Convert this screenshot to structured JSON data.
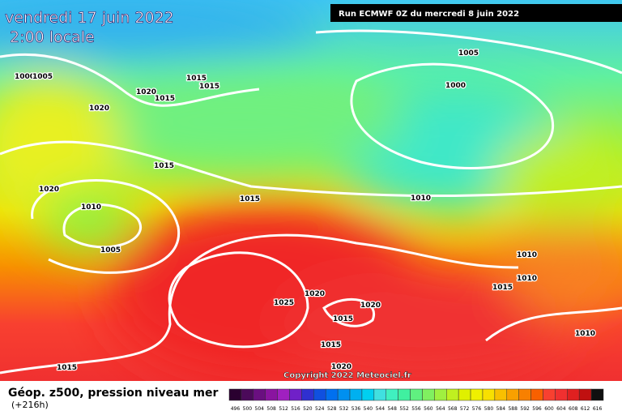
{
  "header": {
    "date": "vendredi 17 juin 2022",
    "time": "2:00 locale",
    "run": "Run ECMWF 0Z du mercredi 8 juin 2022"
  },
  "isobars": [
    "1000",
    "1005",
    "1015",
    "1015",
    "1020",
    "1015",
    "1020",
    "1005",
    "1000",
    "1015",
    "1020",
    "1015",
    "1010",
    "1010",
    "1005",
    "1010",
    "1010",
    "1015",
    "1020",
    "1025",
    "1020",
    "1015",
    "1015",
    "1020",
    "1015",
    "1010"
  ],
  "copyright": "Copyright 2022 Meteociel.fr",
  "footer": {
    "title": "Géop. z500, pression niveau mer",
    "lead": "(+216h)"
  },
  "legend": {
    "labels": [
      496,
      500,
      504,
      508,
      512,
      516,
      520,
      524,
      528,
      532,
      536,
      540,
      544,
      548,
      552,
      556,
      560,
      564,
      568,
      572,
      576,
      580,
      584,
      588,
      592,
      596,
      600,
      604,
      608,
      612,
      616
    ],
    "colors": [
      "#2a0030",
      "#4b0a5a",
      "#6a0f80",
      "#8a14a0",
      "#a020c0",
      "#7020c8",
      "#3030d0",
      "#1050e0",
      "#0070f0",
      "#0090f0",
      "#00b0f0",
      "#00d0f0",
      "#40e0e0",
      "#40f0c0",
      "#40f0a0",
      "#60f080",
      "#80f060",
      "#a0f040",
      "#c0f020",
      "#e0f000",
      "#f0f000",
      "#f8e000",
      "#f8c000",
      "#f8a000",
      "#f88000",
      "#f86000",
      "#f84030",
      "#f03030",
      "#e02020",
      "#c01010",
      "#101010"
    ]
  }
}
